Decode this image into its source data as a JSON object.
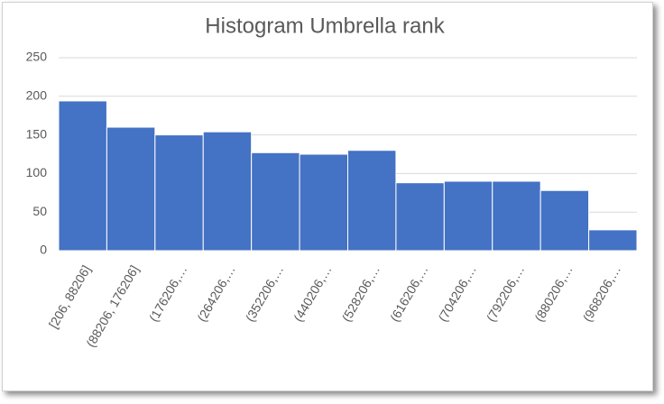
{
  "chart_data": {
    "type": "bar",
    "title": "Histogram Umbrella rank",
    "categories": [
      "[206, 88206]",
      "(88206, 176206]",
      "(176206,…",
      "(264206,…",
      "(352206,…",
      "(440206,…",
      "(528206,…",
      "(616206,…",
      "(704206,…",
      "(792206,…",
      "(880206,…",
      "(968206,…"
    ],
    "values": [
      194,
      160,
      150,
      154,
      127,
      125,
      130,
      88,
      90,
      90,
      78,
      27
    ],
    "color": "#4472c4",
    "ylim": [
      0,
      250
    ],
    "yticks": [
      0,
      50,
      100,
      150,
      200,
      250
    ],
    "grid": true
  }
}
